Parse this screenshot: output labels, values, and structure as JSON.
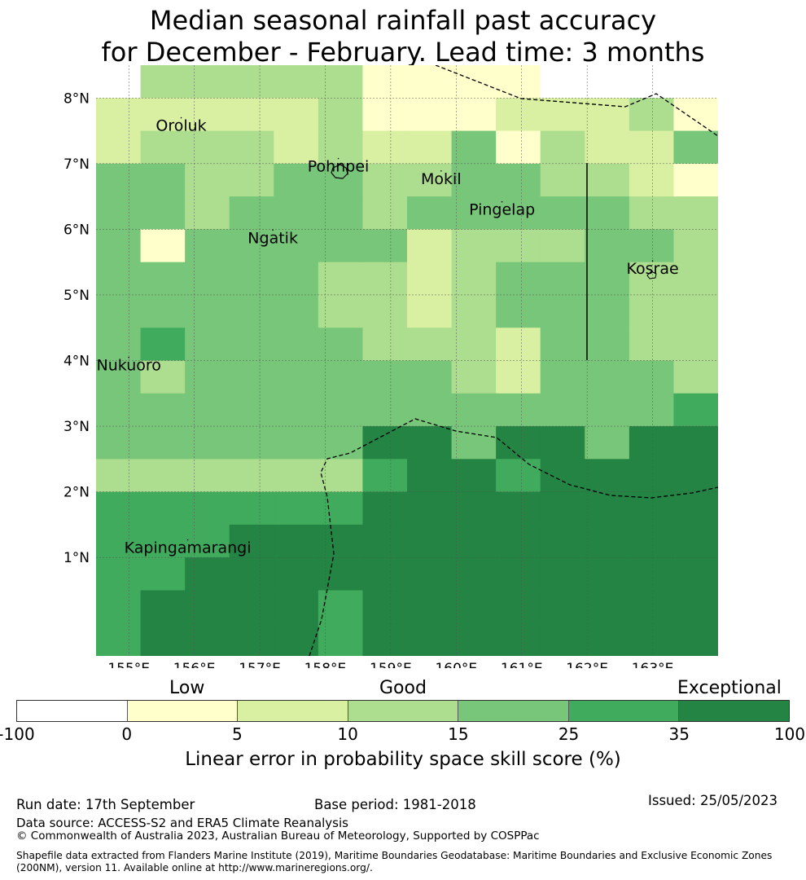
{
  "title": {
    "line1": "Median seasonal rainfall past accuracy",
    "line2": "for December - February. Lead time: 3 months"
  },
  "map": {
    "lon_range": [
      154.5,
      164.0
    ],
    "lat_range": [
      -0.5,
      8.5
    ],
    "x_ticks": [
      "155°E",
      "156°E",
      "157°E",
      "158°E",
      "159°E",
      "160°E",
      "161°E",
      "162°E",
      "163°E"
    ],
    "y_ticks": [
      "8°N",
      "7°N",
      "6°N",
      "5°N",
      "4°N",
      "3°N",
      "2°N",
      "1°N"
    ],
    "places": [
      {
        "name": "Oroluk",
        "lon": 155.8,
        "lat": 7.5
      },
      {
        "name": "Pohnpei",
        "lon": 158.2,
        "lat": 6.88
      },
      {
        "name": "Mokil",
        "lon": 159.77,
        "lat": 6.69
      },
      {
        "name": "Pingelap",
        "lon": 160.7,
        "lat": 6.22
      },
      {
        "name": "Ngatik",
        "lon": 157.2,
        "lat": 5.79
      },
      {
        "name": "Kosrae",
        "lon": 163.0,
        "lat": 5.32
      },
      {
        "name": "Nukuoro",
        "lon": 155.0,
        "lat": 3.85
      },
      {
        "name": "Kapingamarangi",
        "lon": 155.9,
        "lat": 1.07
      }
    ],
    "skill_grid_rows": [
      "-33333AAAA----",
      "2222231112223A",
      "23332322413224",
      "44334433443321",
      "44344434444433",
      "41444442333443",
      "44444332344433",
      "44444332344433",
      "45444433324433",
      "43444444324443",
      "44444444444445",
      "44444466466466",
      "33333356656666",
      "55555566666666",
      "55566666666666",
      "55666666666666",
      "56666566666666",
      "56666566666666"
    ],
    "skill_grid_note": "rows top to bottom; digits = colour class index (1-6), A = light yellow, - = white"
  },
  "colorbar": {
    "categories": [
      "Low",
      "Good",
      "Exceptional"
    ],
    "ticks": [
      "-100",
      "0",
      "5",
      "10",
      "15",
      "25",
      "35",
      "100"
    ],
    "colors": [
      "#ffffff",
      "#ffffcc",
      "#d9f0a3",
      "#addd8e",
      "#78c679",
      "#41ab5d",
      "#238443"
    ],
    "label": "Linear error in probability space skill score (%)"
  },
  "footer": {
    "run_date": "Run date: 17th September",
    "base_period": "Base period: 1981-2018",
    "issued": "Issued: 25/05/2023",
    "data_source": "Data source: ACCESS-S2 and ERA5 Climate Reanalysis",
    "copyright": "© Commonwealth of Australia 2023, Australian Bureau of Meteorology, Supported by COSPPac",
    "shapefile_line1": "Shapefile data extracted from Flanders Marine Institute (2019), Maritime Boundaries Geodatabase: Maritime Boundaries and Exclusive Economic Zones",
    "shapefile_line2": "(200NM), version 11. Available online at http://www.marineregions.org/."
  }
}
